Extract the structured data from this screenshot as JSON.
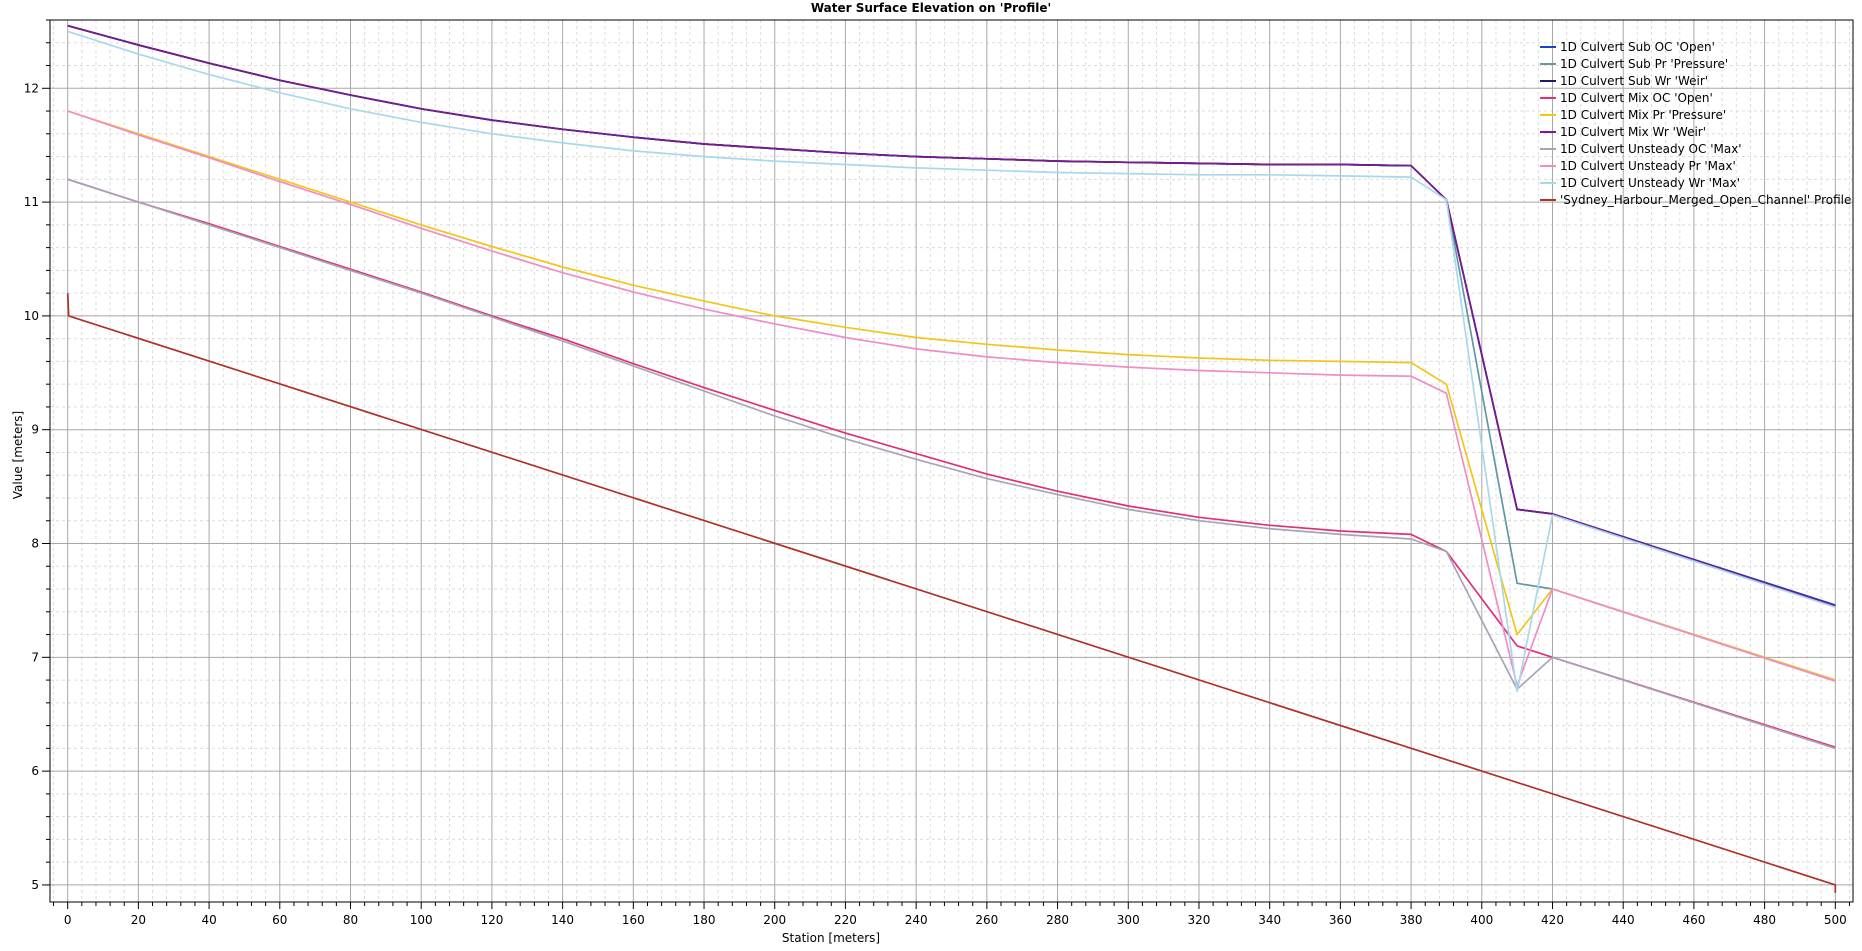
{
  "chart_data": {
    "type": "line",
    "title": "Water Surface Elevation on 'Profile'",
    "xlabel": "Station [meters]",
    "ylabel": "Value [meters]",
    "xlim": [
      -5,
      505
    ],
    "ylim": [
      4.85,
      12.6
    ],
    "x_ticks": [
      0,
      20,
      40,
      60,
      80,
      100,
      120,
      140,
      160,
      180,
      200,
      220,
      240,
      260,
      280,
      300,
      320,
      340,
      360,
      380,
      400,
      420,
      440,
      460,
      480,
      500
    ],
    "y_ticks": [
      5,
      6,
      7,
      8,
      9,
      10,
      11,
      12
    ],
    "grid": true,
    "legend_position": "top-right",
    "series": [
      {
        "name": "1D Culvert Sub OC 'Open'",
        "color": "#1f3fd0",
        "points": [
          [
            0,
            12.55
          ],
          [
            20,
            12.38
          ],
          [
            40,
            12.22
          ],
          [
            60,
            12.07
          ],
          [
            80,
            11.94
          ],
          [
            100,
            11.82
          ],
          [
            120,
            11.72
          ],
          [
            140,
            11.64
          ],
          [
            160,
            11.57
          ],
          [
            180,
            11.51
          ],
          [
            200,
            11.47
          ],
          [
            220,
            11.43
          ],
          [
            240,
            11.4
          ],
          [
            260,
            11.38
          ],
          [
            280,
            11.36
          ],
          [
            300,
            11.35
          ],
          [
            320,
            11.34
          ],
          [
            340,
            11.33
          ],
          [
            360,
            11.33
          ],
          [
            380,
            11.32
          ],
          [
            390,
            11.02
          ],
          [
            410,
            8.3
          ],
          [
            420,
            8.26
          ],
          [
            500,
            7.46
          ]
        ]
      },
      {
        "name": "1D Culvert Sub Pr 'Pressure'",
        "color": "#5f9a9f",
        "points": [
          [
            0,
            12.55
          ],
          [
            20,
            12.38
          ],
          [
            40,
            12.22
          ],
          [
            60,
            12.07
          ],
          [
            80,
            11.94
          ],
          [
            100,
            11.82
          ],
          [
            120,
            11.72
          ],
          [
            140,
            11.64
          ],
          [
            160,
            11.57
          ],
          [
            180,
            11.51
          ],
          [
            200,
            11.47
          ],
          [
            220,
            11.43
          ],
          [
            240,
            11.4
          ],
          [
            260,
            11.38
          ],
          [
            280,
            11.36
          ],
          [
            300,
            11.35
          ],
          [
            320,
            11.34
          ],
          [
            340,
            11.33
          ],
          [
            360,
            11.33
          ],
          [
            380,
            11.32
          ],
          [
            390,
            11.02
          ],
          [
            410,
            7.65
          ],
          [
            420,
            7.6
          ],
          [
            500,
            6.8
          ]
        ]
      },
      {
        "name": "1D Culvert Sub Wr 'Weir'",
        "color": "#1a1a70",
        "points": [
          [
            0,
            12.55
          ],
          [
            20,
            12.38
          ],
          [
            40,
            12.22
          ],
          [
            60,
            12.07
          ],
          [
            80,
            11.94
          ],
          [
            100,
            11.82
          ],
          [
            120,
            11.72
          ],
          [
            140,
            11.64
          ],
          [
            160,
            11.57
          ],
          [
            180,
            11.51
          ],
          [
            200,
            11.47
          ],
          [
            220,
            11.43
          ],
          [
            240,
            11.4
          ],
          [
            260,
            11.38
          ],
          [
            280,
            11.36
          ],
          [
            300,
            11.35
          ],
          [
            320,
            11.34
          ],
          [
            340,
            11.33
          ],
          [
            360,
            11.33
          ],
          [
            380,
            11.32
          ],
          [
            390,
            11.02
          ],
          [
            410,
            8.3
          ],
          [
            420,
            8.26
          ],
          [
            500,
            7.45
          ]
        ]
      },
      {
        "name": "1D Culvert Mix OC 'Open'",
        "color": "#e0307a",
        "points": [
          [
            0,
            11.2
          ],
          [
            20,
            11.0
          ],
          [
            40,
            10.81
          ],
          [
            60,
            10.61
          ],
          [
            80,
            10.41
          ],
          [
            100,
            10.21
          ],
          [
            120,
            10.0
          ],
          [
            140,
            9.8
          ],
          [
            160,
            9.58
          ],
          [
            180,
            9.37
          ],
          [
            200,
            9.17
          ],
          [
            220,
            8.97
          ],
          [
            240,
            8.79
          ],
          [
            260,
            8.61
          ],
          [
            280,
            8.46
          ],
          [
            300,
            8.33
          ],
          [
            320,
            8.23
          ],
          [
            340,
            8.16
          ],
          [
            360,
            8.11
          ],
          [
            380,
            8.08
          ],
          [
            390,
            7.93
          ],
          [
            410,
            7.1
          ],
          [
            420,
            7.0
          ],
          [
            500,
            6.21
          ]
        ]
      },
      {
        "name": "1D Culvert Mix Pr 'Pressure'",
        "color": "#f2c619",
        "points": [
          [
            0,
            11.8
          ],
          [
            20,
            11.6
          ],
          [
            40,
            11.4
          ],
          [
            60,
            11.2
          ],
          [
            80,
            11.0
          ],
          [
            100,
            10.8
          ],
          [
            120,
            10.61
          ],
          [
            140,
            10.43
          ],
          [
            160,
            10.27
          ],
          [
            180,
            10.13
          ],
          [
            200,
            10.0
          ],
          [
            220,
            9.9
          ],
          [
            240,
            9.81
          ],
          [
            260,
            9.75
          ],
          [
            280,
            9.7
          ],
          [
            300,
            9.66
          ],
          [
            320,
            9.63
          ],
          [
            340,
            9.61
          ],
          [
            360,
            9.6
          ],
          [
            380,
            9.59
          ],
          [
            390,
            9.4
          ],
          [
            410,
            7.2
          ],
          [
            420,
            7.6
          ],
          [
            500,
            6.8
          ]
        ]
      },
      {
        "name": "1D Culvert Mix Wr 'Weir'",
        "color": "#7a1a8f",
        "points": [
          [
            0,
            12.55
          ],
          [
            20,
            12.38
          ],
          [
            40,
            12.22
          ],
          [
            60,
            12.07
          ],
          [
            80,
            11.94
          ],
          [
            100,
            11.82
          ],
          [
            120,
            11.72
          ],
          [
            140,
            11.64
          ],
          [
            160,
            11.57
          ],
          [
            180,
            11.51
          ],
          [
            200,
            11.47
          ],
          [
            220,
            11.43
          ],
          [
            240,
            11.4
          ],
          [
            260,
            11.38
          ],
          [
            280,
            11.36
          ],
          [
            300,
            11.35
          ],
          [
            320,
            11.34
          ],
          [
            340,
            11.33
          ],
          [
            360,
            11.33
          ],
          [
            380,
            11.32
          ],
          [
            390,
            11.02
          ],
          [
            410,
            8.3
          ],
          [
            420,
            8.26
          ],
          [
            500,
            7.45
          ]
        ]
      },
      {
        "name": "1D Culvert Unsteady OC 'Max'",
        "color": "#a8a4b8",
        "points": [
          [
            0,
            11.2
          ],
          [
            20,
            11.0
          ],
          [
            40,
            10.8
          ],
          [
            60,
            10.6
          ],
          [
            80,
            10.4
          ],
          [
            100,
            10.2
          ],
          [
            120,
            9.99
          ],
          [
            140,
            9.78
          ],
          [
            160,
            9.56
          ],
          [
            180,
            9.34
          ],
          [
            200,
            9.12
          ],
          [
            220,
            8.92
          ],
          [
            240,
            8.74
          ],
          [
            260,
            8.57
          ],
          [
            280,
            8.43
          ],
          [
            300,
            8.3
          ],
          [
            320,
            8.2
          ],
          [
            340,
            8.13
          ],
          [
            360,
            8.08
          ],
          [
            380,
            8.04
          ],
          [
            390,
            7.93
          ],
          [
            410,
            6.72
          ],
          [
            420,
            7.0
          ],
          [
            500,
            6.2
          ]
        ]
      },
      {
        "name": "1D Culvert Unsteady Pr 'Max'",
        "color": "#f08cc8",
        "points": [
          [
            0,
            11.8
          ],
          [
            20,
            11.59
          ],
          [
            40,
            11.39
          ],
          [
            60,
            11.18
          ],
          [
            80,
            10.98
          ],
          [
            100,
            10.77
          ],
          [
            120,
            10.57
          ],
          [
            140,
            10.38
          ],
          [
            160,
            10.21
          ],
          [
            180,
            10.06
          ],
          [
            200,
            9.93
          ],
          [
            220,
            9.81
          ],
          [
            240,
            9.71
          ],
          [
            260,
            9.64
          ],
          [
            280,
            9.59
          ],
          [
            300,
            9.55
          ],
          [
            320,
            9.52
          ],
          [
            340,
            9.5
          ],
          [
            360,
            9.48
          ],
          [
            380,
            9.47
          ],
          [
            390,
            9.32
          ],
          [
            410,
            6.75
          ],
          [
            420,
            7.6
          ],
          [
            500,
            6.79
          ]
        ]
      },
      {
        "name": "1D Culvert Unsteady Wr 'Max'",
        "color": "#a8d8ea",
        "points": [
          [
            0,
            12.5
          ],
          [
            20,
            12.3
          ],
          [
            40,
            12.12
          ],
          [
            60,
            11.96
          ],
          [
            80,
            11.82
          ],
          [
            100,
            11.7
          ],
          [
            120,
            11.6
          ],
          [
            140,
            11.52
          ],
          [
            160,
            11.45
          ],
          [
            180,
            11.4
          ],
          [
            200,
            11.36
          ],
          [
            220,
            11.33
          ],
          [
            240,
            11.3
          ],
          [
            260,
            11.28
          ],
          [
            280,
            11.26
          ],
          [
            300,
            11.25
          ],
          [
            320,
            11.24
          ],
          [
            340,
            11.24
          ],
          [
            360,
            11.23
          ],
          [
            380,
            11.22
          ],
          [
            390,
            11.02
          ],
          [
            410,
            6.7
          ],
          [
            420,
            8.25
          ],
          [
            500,
            7.44
          ]
        ]
      },
      {
        "name": "'Sydney_Harbour_Merged_Open_Channel' Profile",
        "color": "#b0302a",
        "points": [
          [
            0,
            10.2
          ],
          [
            0.3,
            10.0
          ],
          [
            500,
            5.0
          ],
          [
            500,
            4.93
          ]
        ]
      }
    ]
  }
}
